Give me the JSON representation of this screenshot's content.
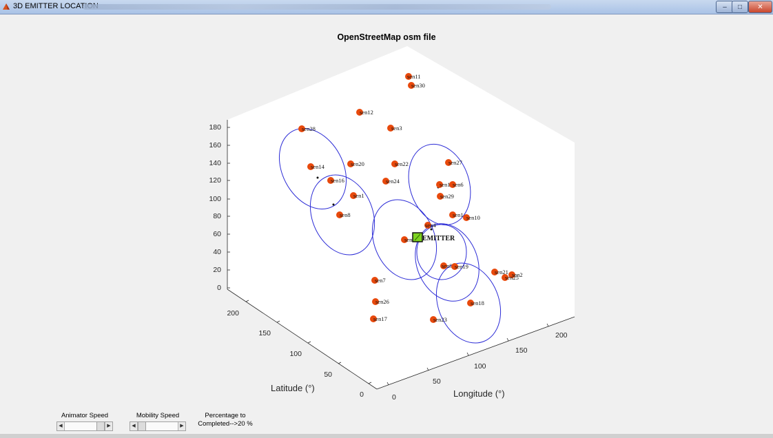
{
  "window": {
    "title": "3D EMITTER LOCATION",
    "minimize_label": "–",
    "maximize_label": "□",
    "close_label": "✕"
  },
  "plot": {
    "title": "OpenStreetMap osm file",
    "xlabel": "Longitude (°)",
    "ylabel": "Latitude (°)",
    "z_ticks": [
      "0",
      "20",
      "40",
      "60",
      "80",
      "100",
      "120",
      "140",
      "160",
      "180"
    ],
    "lat_ticks": [
      "0",
      "50",
      "100",
      "150",
      "200"
    ],
    "lon_ticks": [
      "0",
      "50",
      "100",
      "150",
      "200"
    ],
    "emitter_label": "EMITTER",
    "sensor_color": "#e8490c",
    "ellipse_color": "#2b2bd6",
    "emitter_color": "#7ed321",
    "sensors": [
      {
        "name": "sen11"
      },
      {
        "name": "sen30"
      },
      {
        "name": "sen12"
      },
      {
        "name": "sen3"
      },
      {
        "name": "sen28"
      },
      {
        "name": "sen14"
      },
      {
        "name": "sen20"
      },
      {
        "name": "sen22"
      },
      {
        "name": "sen27"
      },
      {
        "name": "sen16"
      },
      {
        "name": "sen24"
      },
      {
        "name": "sen1"
      },
      {
        "name": "sen1"
      },
      {
        "name": "sen6"
      },
      {
        "name": "sen29"
      },
      {
        "name": "sen8"
      },
      {
        "name": "sen1"
      },
      {
        "name": "sen10"
      },
      {
        "name": "sen4"
      },
      {
        "name": "sen"
      },
      {
        "name": "sen9"
      },
      {
        "name": "sen19"
      },
      {
        "name": "sen21"
      },
      {
        "name": "sen2"
      },
      {
        "name": "sen25"
      },
      {
        "name": "sen7"
      },
      {
        "name": "sen18"
      },
      {
        "name": "sen26"
      },
      {
        "name": "sen17"
      },
      {
        "name": "sen23"
      }
    ]
  },
  "controls": {
    "animator_label": "Animator Speed",
    "mobility_label": "Mobility Speed",
    "percentage_line1": "Percentage to",
    "percentage_line2": "Completed-->20 %"
  }
}
